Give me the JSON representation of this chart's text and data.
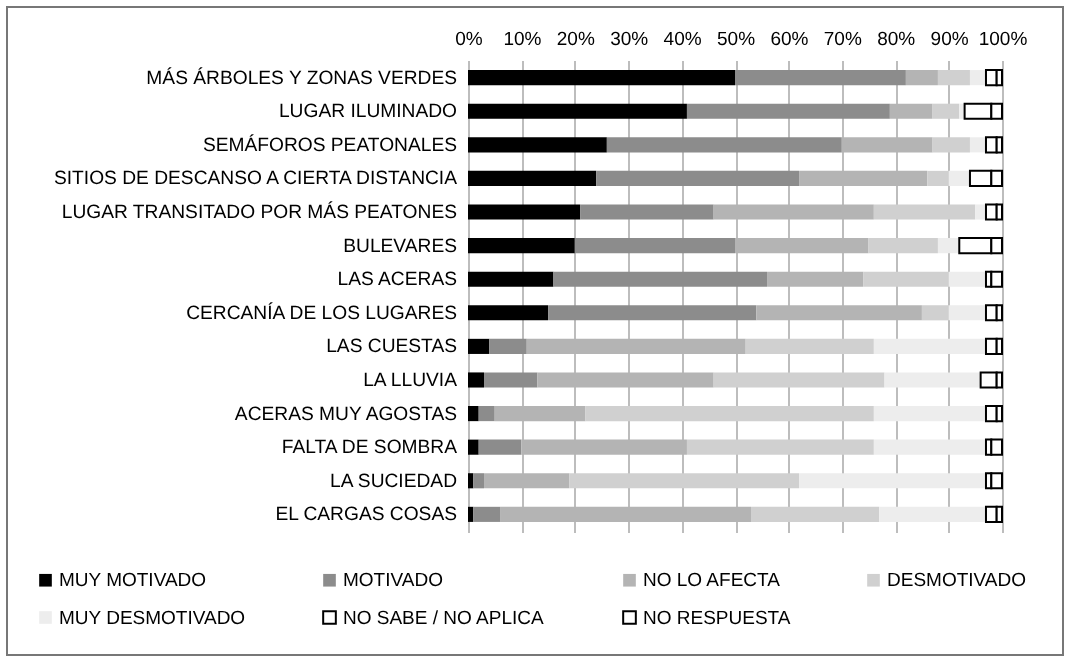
{
  "chart_data": {
    "type": "bar",
    "orientation": "horizontal",
    "stacked": true,
    "grid": "x",
    "legend": "bottom",
    "categories": [
      "MÁS ÁRBOLES Y ZONAS VERDES",
      "LUGAR ILUMINADO",
      "SEMÁFOROS PEATONALES",
      "SITIOS DE DESCANSO A CIERTA DISTANCIA",
      "LUGAR TRANSITADO POR MÁS PEATONES",
      "BULEVARES",
      "LAS ACERAS",
      "CERCANÍA DE LOS LUGARES",
      "LAS CUESTAS",
      "LA LLUVIA",
      "ACERAS MUY AGOSTAS",
      "FALTA DE SOMBRA",
      "LA SUCIEDAD",
      "EL CARGAS COSAS"
    ],
    "xlim": [
      0,
      100
    ],
    "xticks": [
      {
        "value": 0,
        "label": "0%"
      },
      {
        "value": 10,
        "label": "10%"
      },
      {
        "value": 20,
        "label": "20%"
      },
      {
        "value": 30,
        "label": "30%"
      },
      {
        "value": 40,
        "label": "40%"
      },
      {
        "value": 50,
        "label": "50%"
      },
      {
        "value": 60,
        "label": "60%"
      },
      {
        "value": 70,
        "label": "70%"
      },
      {
        "value": 80,
        "label": "80%"
      },
      {
        "value": 90,
        "label": "90%"
      },
      {
        "value": 100,
        "label": "100%"
      }
    ],
    "series": [
      {
        "name": "MUY MOTIVADO",
        "color": "#000000",
        "values": [
          50,
          41,
          26,
          24,
          21,
          20,
          16,
          15,
          4,
          3,
          2,
          2,
          1,
          1
        ]
      },
      {
        "name": "MOTIVADO",
        "color": "#8c8c8c",
        "values": [
          32,
          38,
          44,
          38,
          25,
          30,
          40,
          39,
          7,
          10,
          3,
          8,
          2,
          5
        ]
      },
      {
        "name": "NO LO AFECTA",
        "color": "#b4b4b4",
        "values": [
          6,
          8,
          17,
          24,
          30,
          25,
          18,
          31,
          41,
          33,
          17,
          31,
          16,
          47
        ]
      },
      {
        "name": "DESMOTIVADO",
        "color": "#d0d0d0",
        "values": [
          6,
          5,
          7,
          4,
          19,
          13,
          16,
          5,
          24,
          32,
          54,
          35,
          43,
          24
        ]
      },
      {
        "name": "MUY DESMOTIVADO",
        "color": "#ededed",
        "values": [
          3,
          1,
          3,
          4,
          2,
          4,
          7,
          7,
          21,
          18,
          21,
          21,
          35,
          20
        ]
      },
      {
        "name": "NO SABE / NO APLICA",
        "color": "#ffffff",
        "values": [
          2,
          5,
          2,
          4,
          2,
          6,
          1,
          2,
          2,
          3,
          2,
          1,
          1,
          2
        ]
      },
      {
        "name": "NO RESPUESTA",
        "color": "#ffffff",
        "values": [
          1,
          2,
          1,
          2,
          1,
          2,
          2,
          1,
          1,
          1,
          1,
          2,
          2,
          1
        ]
      }
    ]
  }
}
